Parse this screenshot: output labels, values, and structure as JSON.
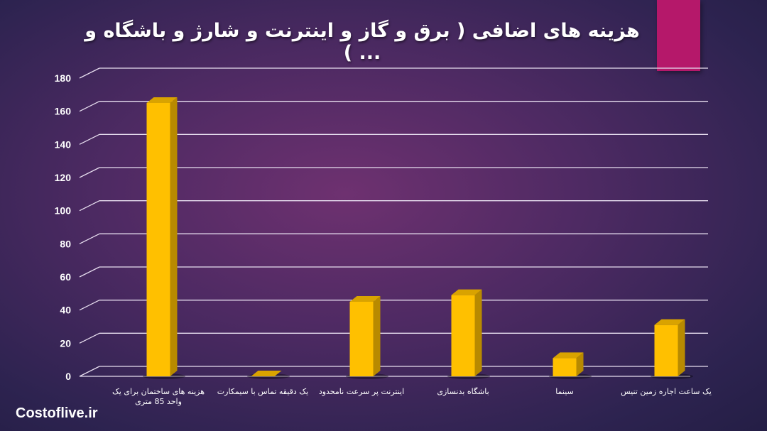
{
  "title": "هزینه های اضافی ( برق و گاز و اینترنت و شارژ و باشگاه و ... )",
  "brand": "Costoflive.ir",
  "colors": {
    "bar": "#ffc000",
    "bar_side": "#b88a00",
    "accent": "#b5186a",
    "grid": "#e8dff0"
  },
  "chart_data": {
    "type": "bar",
    "title": "هزینه های اضافی ( برق و گاز و اینترنت و شارژ و باشگاه و ... )",
    "xlabel": "",
    "ylabel": "",
    "ylim": [
      0,
      180
    ],
    "yticks": [
      0,
      20,
      40,
      60,
      80,
      100,
      120,
      140,
      160,
      180
    ],
    "grid": true,
    "legend": "none",
    "categories": [
      "هزینه های ساختمان برای یک واحد 85 متری",
      "یک دقیقه تماس با سیمکارت",
      "اینترنت پر سرعت نامحدود",
      "باشگاه بدنسازی",
      "سینما",
      "یک ساعت اجاره زمین تنیس"
    ],
    "values": [
      165,
      0.5,
      45,
      49,
      11,
      31
    ]
  },
  "labels": {
    "x": [
      "هزینه های ساختمان برای یک واحد 85 متری",
      "یک دقیقه تماس با سیمکارت",
      "اینترنت پر سرعت نامحدود",
      "باشگاه بدنسازی",
      "سینما",
      "یک ساعت اجاره زمین تنیس"
    ]
  }
}
